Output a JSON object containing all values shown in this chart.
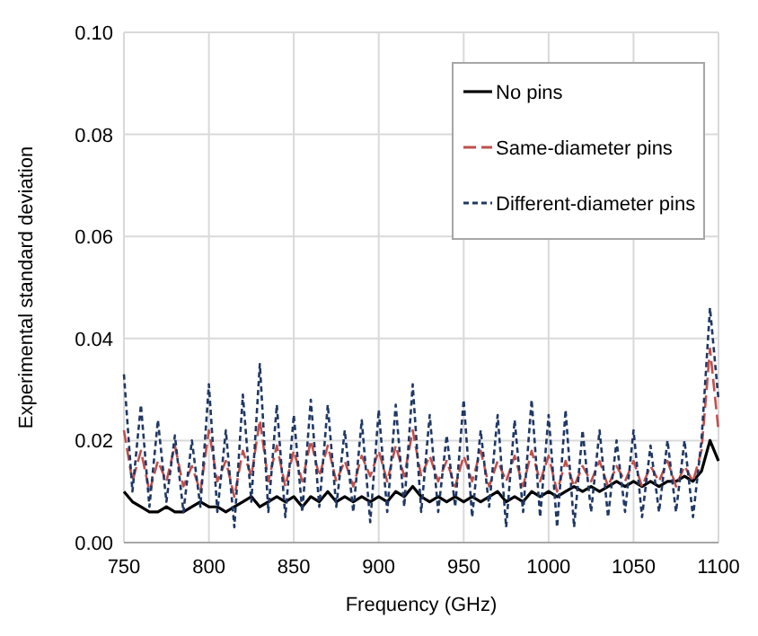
{
  "chart_data": {
    "type": "line",
    "xlabel": "Frequency (GHz)",
    "ylabel": "Experimental standard deviation",
    "x": [
      750,
      755,
      760,
      765,
      770,
      775,
      780,
      785,
      790,
      795,
      800,
      805,
      810,
      815,
      820,
      825,
      830,
      835,
      840,
      845,
      850,
      855,
      860,
      865,
      870,
      875,
      880,
      885,
      890,
      895,
      900,
      905,
      910,
      915,
      920,
      925,
      930,
      935,
      940,
      945,
      950,
      955,
      960,
      965,
      970,
      975,
      980,
      985,
      990,
      995,
      1000,
      1005,
      1010,
      1015,
      1020,
      1025,
      1030,
      1035,
      1040,
      1045,
      1050,
      1055,
      1060,
      1065,
      1070,
      1075,
      1080,
      1085,
      1090,
      1095,
      1100
    ],
    "series": [
      {
        "name": "No pins",
        "color": "#000000",
        "line_style": "solid",
        "values": [
          0.01,
          0.008,
          0.007,
          0.006,
          0.006,
          0.007,
          0.006,
          0.006,
          0.007,
          0.008,
          0.007,
          0.007,
          0.006,
          0.007,
          0.008,
          0.009,
          0.007,
          0.008,
          0.009,
          0.008,
          0.009,
          0.007,
          0.009,
          0.008,
          0.01,
          0.008,
          0.009,
          0.008,
          0.009,
          0.008,
          0.009,
          0.008,
          0.01,
          0.009,
          0.011,
          0.009,
          0.008,
          0.009,
          0.008,
          0.009,
          0.008,
          0.009,
          0.008,
          0.009,
          0.01,
          0.008,
          0.009,
          0.008,
          0.01,
          0.009,
          0.01,
          0.009,
          0.01,
          0.011,
          0.01,
          0.011,
          0.01,
          0.011,
          0.012,
          0.011,
          0.012,
          0.011,
          0.012,
          0.011,
          0.012,
          0.012,
          0.013,
          0.012,
          0.014,
          0.02,
          0.016
        ]
      },
      {
        "name": "Same-diameter pins",
        "color": "#c0504d",
        "line_style": "dashed",
        "values": [
          0.022,
          0.012,
          0.018,
          0.01,
          0.016,
          0.012,
          0.019,
          0.011,
          0.015,
          0.01,
          0.022,
          0.012,
          0.016,
          0.009,
          0.018,
          0.013,
          0.024,
          0.012,
          0.019,
          0.011,
          0.018,
          0.012,
          0.02,
          0.013,
          0.019,
          0.012,
          0.016,
          0.011,
          0.017,
          0.013,
          0.018,
          0.012,
          0.019,
          0.013,
          0.022,
          0.013,
          0.017,
          0.012,
          0.016,
          0.011,
          0.017,
          0.012,
          0.018,
          0.011,
          0.016,
          0.012,
          0.017,
          0.011,
          0.018,
          0.012,
          0.017,
          0.01,
          0.016,
          0.011,
          0.015,
          0.012,
          0.016,
          0.011,
          0.015,
          0.012,
          0.016,
          0.011,
          0.015,
          0.012,
          0.016,
          0.011,
          0.015,
          0.012,
          0.018,
          0.038,
          0.022
        ]
      },
      {
        "name": "Different-diameter pins",
        "color": "#1f3864",
        "line_style": "dotted",
        "values": [
          0.033,
          0.01,
          0.027,
          0.007,
          0.024,
          0.008,
          0.021,
          0.006,
          0.02,
          0.007,
          0.031,
          0.006,
          0.022,
          0.003,
          0.029,
          0.008,
          0.035,
          0.006,
          0.027,
          0.005,
          0.025,
          0.006,
          0.028,
          0.007,
          0.027,
          0.007,
          0.022,
          0.006,
          0.024,
          0.004,
          0.026,
          0.006,
          0.027,
          0.007,
          0.031,
          0.006,
          0.025,
          0.006,
          0.021,
          0.007,
          0.028,
          0.005,
          0.022,
          0.007,
          0.025,
          0.003,
          0.024,
          0.006,
          0.028,
          0.005,
          0.025,
          0.003,
          0.026,
          0.003,
          0.022,
          0.006,
          0.022,
          0.005,
          0.02,
          0.006,
          0.022,
          0.005,
          0.019,
          0.006,
          0.02,
          0.006,
          0.02,
          0.005,
          0.02,
          0.046,
          0.028
        ]
      }
    ],
    "xlim": [
      750,
      1100
    ],
    "xticks": [
      750,
      800,
      850,
      900,
      950,
      1000,
      1050,
      1100
    ],
    "ylim": [
      0,
      0.1
    ],
    "yticks": [
      {
        "value": 0,
        "label": "0.00"
      },
      {
        "value": 0.02,
        "label": "0.02"
      },
      {
        "value": 0.04,
        "label": "0.04"
      },
      {
        "value": 0.06,
        "label": "0.06"
      },
      {
        "value": 0.08,
        "label": "0.08"
      },
      {
        "value": 0.1,
        "label": "0.10"
      }
    ],
    "grid": true,
    "legend": "top right"
  }
}
